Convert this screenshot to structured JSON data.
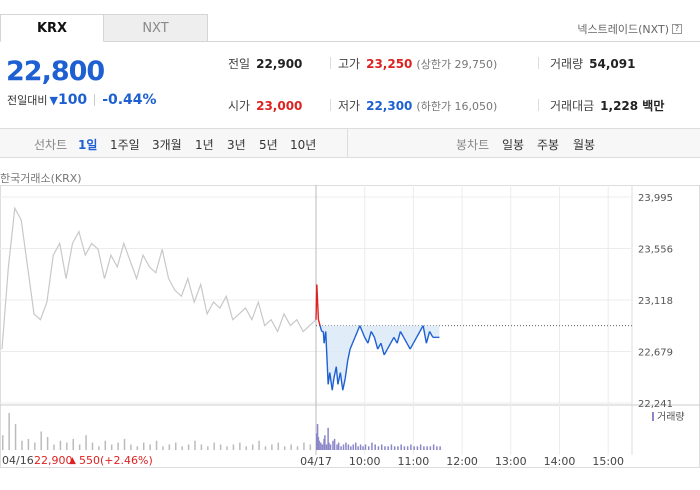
{
  "tabs": [
    {
      "label": "KRX"
    },
    {
      "label": "NXT"
    }
  ],
  "nxt_link": "넥스트레이드(NXT)",
  "help_glyph": "?",
  "price": "22,800",
  "change": {
    "label": "전일대비",
    "direction_glyph": "▼",
    "amount": "100",
    "percent": "-0.44%"
  },
  "stats": {
    "prev_close": {
      "label": "전일",
      "value": "22,900"
    },
    "high": {
      "label": "고가",
      "value": "23,250",
      "sub": "(상한가 29,750)"
    },
    "volume": {
      "label": "거래량",
      "value": "54,091"
    },
    "open": {
      "label": "시가",
      "value": "23,000"
    },
    "low": {
      "label": "저가",
      "value": "22,300",
      "sub": "(하한가 16,050)"
    },
    "amount": {
      "label": "거래대금",
      "value": "1,228 백만"
    }
  },
  "toolbar": {
    "line_label": "선차트",
    "periods": [
      "1일",
      "1주일",
      "3개월",
      "1년",
      "3년",
      "5년",
      "10년"
    ],
    "selected_period": "1일",
    "candle_label": "봉차트",
    "candle_periods": [
      "일봉",
      "주봉",
      "월봉"
    ]
  },
  "exchange_label": "한국거래소(KRX)",
  "volume_legend": "거래량",
  "footer": {
    "date": "04/16",
    "close": "22,900",
    "up_glyph": "▲",
    "change": "550",
    "pct": "(+2.46%)"
  },
  "colors": {
    "up": "#dd2222",
    "down": "#1e60d2",
    "prev_line": "#c8c8c8",
    "fill": "#d8e8f8"
  },
  "chart_data": {
    "type": "line",
    "y_ticks": [
      "23,995",
      "23,556",
      "23,118",
      "22,679",
      "22,241"
    ],
    "ylim": [
      22241,
      23995
    ],
    "x_ticks": [
      "04/17",
      "10:00",
      "11:00",
      "12:00",
      "13:00",
      "14:00",
      "15:00"
    ],
    "session_start": "09:00",
    "session_end": "15:30",
    "prev_close": 22900,
    "prev_day_values": [
      22700,
      23400,
      23900,
      23800,
      23400,
      23000,
      22950,
      23100,
      23500,
      23600,
      23300,
      23600,
      23700,
      23500,
      23600,
      23550,
      23300,
      23500,
      23400,
      23600,
      23450,
      23300,
      23500,
      23400,
      23350,
      23550,
      23300,
      23200,
      23150,
      23300,
      23100,
      23250,
      23000,
      23100,
      23050,
      23150,
      22950,
      23000,
      23050,
      22950,
      23100,
      22900,
      22950,
      22850,
      23000,
      22900,
      22950,
      22850,
      22900,
      22950
    ],
    "today_times": [
      "09:00",
      "09:01",
      "09:02",
      "09:03",
      "09:05",
      "09:07",
      "09:09",
      "09:10",
      "09:12",
      "09:14",
      "09:15",
      "09:17",
      "09:20",
      "09:22",
      "09:25",
      "09:27",
      "09:30",
      "09:33",
      "09:36",
      "09:39",
      "09:42",
      "09:45",
      "09:48",
      "09:51",
      "09:54",
      "09:57",
      "10:00",
      "10:04",
      "10:08",
      "10:12",
      "10:16",
      "10:20",
      "10:24",
      "10:28",
      "10:32",
      "10:36",
      "10:40",
      "10:44",
      "10:48",
      "10:52",
      "10:56",
      "11:00",
      "11:04",
      "11:08",
      "11:12",
      "11:16",
      "11:20",
      "11:24",
      "11:28",
      "11:32"
    ],
    "today_values": [
      22950,
      23250,
      23100,
      22950,
      22900,
      22850,
      22850,
      22750,
      22850,
      22550,
      22400,
      22500,
      22350,
      22450,
      22550,
      22400,
      22500,
      22350,
      22450,
      22600,
      22700,
      22750,
      22800,
      22850,
      22900,
      22850,
      22800,
      22750,
      22850,
      22800,
      22700,
      22750,
      22650,
      22700,
      22750,
      22800,
      22750,
      22850,
      22800,
      22750,
      22700,
      22750,
      22800,
      22850,
      22900,
      22750,
      22850,
      22800,
      22800,
      22800
    ],
    "prev_volume": [
      8,
      20,
      14,
      5,
      6,
      4,
      10,
      7,
      3,
      5,
      4,
      6,
      3,
      8,
      4,
      2,
      5,
      3,
      4,
      6,
      3,
      2,
      4,
      3,
      5,
      2,
      3,
      4,
      2,
      3,
      5,
      3,
      2,
      4,
      3,
      2,
      3,
      4,
      2,
      3,
      5,
      2,
      3,
      4,
      2,
      3,
      2,
      4,
      3,
      5
    ],
    "today_volume": [
      9,
      14,
      7,
      5,
      4,
      3,
      6,
      8,
      3,
      12,
      4,
      3,
      5,
      6,
      3,
      4,
      2,
      3,
      4,
      3,
      2,
      3,
      4,
      2,
      3,
      2,
      3,
      2,
      4,
      3,
      2,
      3,
      2,
      2,
      3,
      2,
      2,
      3,
      2,
      2,
      3,
      2,
      2,
      3,
      2,
      2,
      2,
      3,
      2,
      2
    ]
  }
}
